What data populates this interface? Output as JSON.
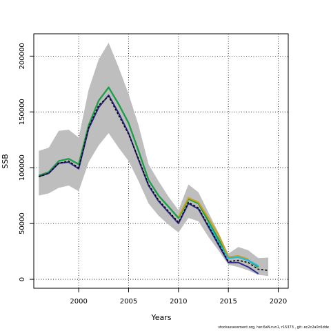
{
  "chart_data": {
    "type": "line",
    "title": "",
    "xlabel": "Years",
    "ylabel": "SSB",
    "xlim": [
      1995.5,
      2021
    ],
    "ylim": [
      -8000,
      220000
    ],
    "x_ticks": [
      2000,
      2005,
      2010,
      2015,
      2020
    ],
    "y_ticks": [
      0,
      50000,
      100000,
      150000,
      200000
    ],
    "grid": true,
    "band": {
      "x": [
        1996,
        1997,
        1998,
        1999,
        2000,
        2001,
        2002,
        2003,
        2004,
        2005,
        2006,
        2007,
        2008,
        2009,
        2010,
        2011,
        2012,
        2013,
        2014,
        2015,
        2016,
        2017,
        2018,
        2019
      ],
      "upper": [
        115000,
        118000,
        133000,
        134000,
        127000,
        170000,
        197000,
        212000,
        190000,
        166000,
        138000,
        103000,
        88000,
        74000,
        62000,
        85000,
        78000,
        60000,
        42000,
        23000,
        29000,
        26000,
        19000,
        19500
      ],
      "lower": [
        75000,
        77000,
        82000,
        84000,
        79000,
        105000,
        120000,
        131000,
        118000,
        106000,
        88000,
        68000,
        57000,
        49000,
        42000,
        55000,
        52000,
        38000,
        26000,
        13000,
        11000,
        8000,
        4000,
        3000
      ]
    },
    "series": [
      {
        "color": "#1e9e4a",
        "width": 2.4,
        "x": [
          1996,
          1997,
          1998,
          1999,
          2000,
          2001,
          2002,
          2003,
          2004,
          2005,
          2006,
          2007,
          2008,
          2009,
          2010,
          2011,
          2012,
          2013,
          2014,
          2015,
          2016,
          2017,
          2018
        ],
        "values": [
          93000,
          96000,
          106000,
          108000,
          103000,
          138000,
          160000,
          172000,
          157000,
          140000,
          115000,
          89000,
          75000,
          65000,
          55000,
          72000,
          68000,
          52000,
          36000,
          19000,
          20000,
          17000,
          11000
        ]
      },
      {
        "color": "#c8a31e",
        "width": 2.2,
        "x": [
          2010,
          2011,
          2012,
          2013,
          2014,
          2015,
          2016,
          2017
        ],
        "values": [
          56000,
          73000,
          69000,
          55000,
          40000,
          20000,
          21000,
          18000
        ]
      },
      {
        "color": "#27b8d8",
        "width": 2.2,
        "x": [
          2013,
          2014,
          2015,
          2016,
          2017,
          2018
        ],
        "values": [
          50000,
          33000,
          19000,
          20000,
          17000,
          12000
        ]
      },
      {
        "color": "#2e2a8c",
        "width": 2.0,
        "x": [
          1996,
          1997,
          1998,
          1999,
          2000,
          2001,
          2002,
          2003,
          2004,
          2005,
          2006,
          2007,
          2008,
          2009,
          2010,
          2011,
          2012,
          2013,
          2014,
          2015,
          2016,
          2017,
          2018
        ],
        "values": [
          92000,
          95000,
          104000,
          105000,
          99000,
          135000,
          154000,
          165000,
          149000,
          131000,
          107000,
          84000,
          70000,
          60000,
          50000,
          68000,
          63000,
          47000,
          31000,
          15000,
          15000,
          11000,
          5000
        ]
      },
      {
        "color": "#000000",
        "width": 1.6,
        "dash": "3,2.5",
        "x": [
          1996,
          1997,
          1998,
          1999,
          2000,
          2001,
          2002,
          2003,
          2004,
          2005,
          2006,
          2007,
          2008,
          2009,
          2010,
          2011,
          2012,
          2013,
          2014,
          2015,
          2016,
          2017,
          2018,
          2019
        ],
        "values": [
          92000,
          95000,
          104000,
          106000,
          100000,
          136000,
          156000,
          164000,
          147000,
          130000,
          108000,
          85000,
          71000,
          61000,
          51000,
          69000,
          64000,
          48000,
          32000,
          16000,
          17000,
          15000,
          9000,
          8000
        ]
      }
    ]
  },
  "footer": "stockassessment.org, her.6aN.run1, r15373 , git: ec2c2a0c6dde"
}
